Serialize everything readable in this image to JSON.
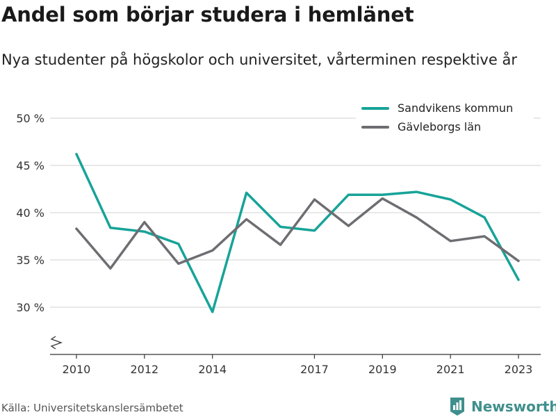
{
  "title": "Andel som börjar studera i hemlänet",
  "subtitle": "Nya studenter på högskolor och universitet, vårterminen respektive år",
  "source": "Källa: Universitetskanslersämbetet",
  "brand": {
    "name": "Newsworthy",
    "icon": "newsworthy-logo-icon",
    "color": "#3f8f8c"
  },
  "chart_data": {
    "type": "line",
    "x": [
      2010,
      2011,
      2012,
      2013,
      2014,
      2015,
      2016,
      2017,
      2018,
      2019,
      2020,
      2021,
      2022,
      2023
    ],
    "x_tick_labels": [
      "2010",
      "2012",
      "2014",
      "2017",
      "2019",
      "2021",
      "2023"
    ],
    "y_tick_labels": [
      "30 %",
      "35 %",
      "40 %",
      "45 %",
      "50 %"
    ],
    "y_ticks": [
      30,
      35,
      40,
      45,
      50
    ],
    "ylim": [
      25,
      50
    ],
    "xlim": [
      2009.5,
      2023.7
    ],
    "axis_break": true,
    "grid": true,
    "legend_position": "top-right",
    "series": [
      {
        "name": "Sandvikens kommun",
        "color": "#17a398",
        "values": [
          46.2,
          38.4,
          38.0,
          36.7,
          29.5,
          42.1,
          38.5,
          38.1,
          41.9,
          41.9,
          42.2,
          41.4,
          39.5,
          32.9
        ]
      },
      {
        "name": "Gävleborgs län",
        "color": "#6e6d72",
        "values": [
          38.3,
          34.1,
          39.0,
          34.6,
          36.0,
          39.3,
          36.6,
          41.4,
          38.6,
          41.5,
          39.5,
          37.0,
          37.5,
          34.9
        ]
      }
    ]
  }
}
